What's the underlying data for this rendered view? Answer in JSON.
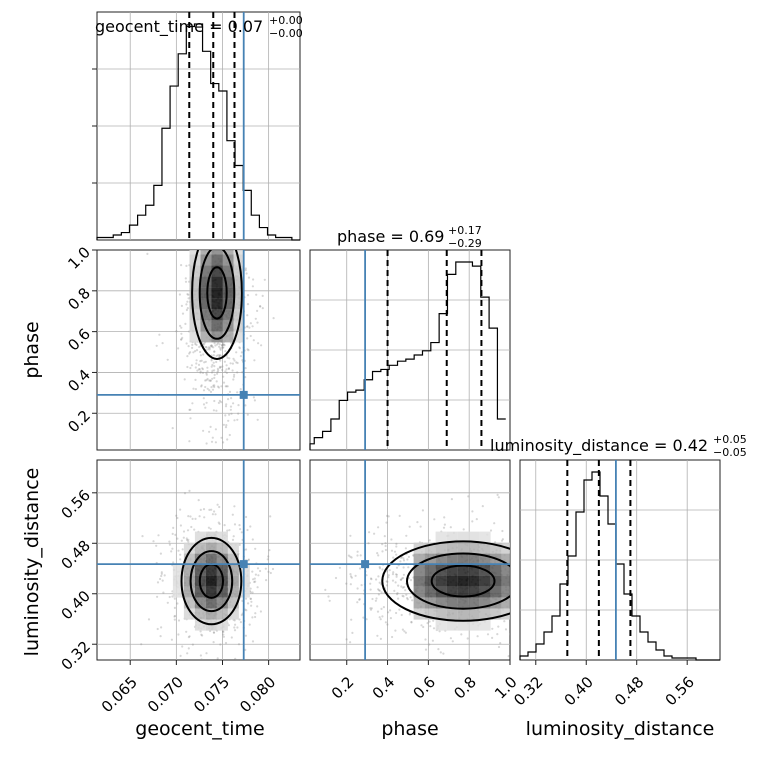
{
  "figure": {
    "parameters": [
      {
        "key": "geocent_time",
        "label": "geocent_time",
        "range": [
          0.0614,
          0.0834
        ],
        "ticks": [
          0.065,
          0.07,
          0.075,
          0.08
        ],
        "tick_labels": [
          "0.065",
          "0.070",
          "0.075",
          "0.080"
        ],
        "truth": 0.0773
      },
      {
        "key": "phase",
        "label": "phase",
        "range": [
          0.02,
          1.0
        ],
        "ticks": [
          0.2,
          0.4,
          0.6,
          0.8,
          1.0
        ],
        "tick_labels": [
          "0.2",
          "0.4",
          "0.6",
          "0.8",
          "1.0"
        ],
        "truth": 0.29
      },
      {
        "key": "luminosity_distance",
        "label": "luminosity_distance",
        "range": [
          0.295,
          0.612
        ],
        "ticks": [
          0.32,
          0.4,
          0.48,
          0.56
        ],
        "tick_labels": [
          "0.32",
          "0.40",
          "0.48",
          "0.56"
        ],
        "truth": 0.447
      }
    ],
    "titles": [
      {
        "text": "geocent_time = 0.07",
        "plus": "+0.00",
        "minus": "−0.00"
      },
      {
        "text": "phase = 0.69",
        "plus": "+0.17",
        "minus": "−0.29"
      },
      {
        "text": "luminosity_distance = 0.42",
        "plus": "+0.05",
        "minus": "−0.05"
      }
    ],
    "colors": {
      "truth": "#4682b4",
      "hist": "#000000",
      "density": "#000000",
      "samples": "#8c8c8c"
    }
  },
  "chart_data": {
    "type": "corner",
    "grid": true,
    "series": [
      {
        "name": "geocent_time",
        "bins_edges_start": 0.0614,
        "bin_width": 0.00088,
        "counts": [
          1,
          1,
          2,
          3,
          6,
          10,
          14,
          22,
          45,
          62,
          75,
          86,
          87,
          76,
          63,
          60,
          40,
          30,
          20,
          10,
          5,
          2,
          1,
          1,
          0
        ],
        "quantiles": [
          0.0714,
          0.074,
          0.0763
        ],
        "truth": 0.0773
      },
      {
        "name": "phase",
        "bins_edges_start": 0.0,
        "bin_width": 0.0408,
        "counts": [
          3,
          6,
          9,
          15,
          24,
          28,
          29,
          34,
          38,
          39,
          41,
          43,
          44,
          46,
          48,
          52,
          66,
          85,
          91,
          91,
          89,
          74,
          59,
          15
        ],
        "quantiles": [
          0.4,
          0.69,
          0.86
        ],
        "truth": 0.29
      },
      {
        "name": "luminosity_distance",
        "bins_edges_start": 0.295,
        "bin_width": 0.01268,
        "counts": [
          2,
          4,
          8,
          14,
          22,
          38,
          52,
          74,
          90,
          94,
          82,
          68,
          48,
          33,
          22,
          14,
          9,
          5,
          2,
          1,
          1,
          1,
          0,
          0,
          0
        ],
        "quantiles": [
          0.37,
          0.42,
          0.47
        ],
        "truth": 0.447
      }
    ],
    "pairs": [
      {
        "x": "geocent_time",
        "y": "phase",
        "peak": [
          0.0744,
          0.79
        ]
      },
      {
        "x": "geocent_time",
        "y": "luminosity_distance",
        "peak": [
          0.0738,
          0.42
        ]
      },
      {
        "x": "phase",
        "y": "luminosity_distance",
        "peak": [
          0.77,
          0.42
        ]
      }
    ]
  }
}
